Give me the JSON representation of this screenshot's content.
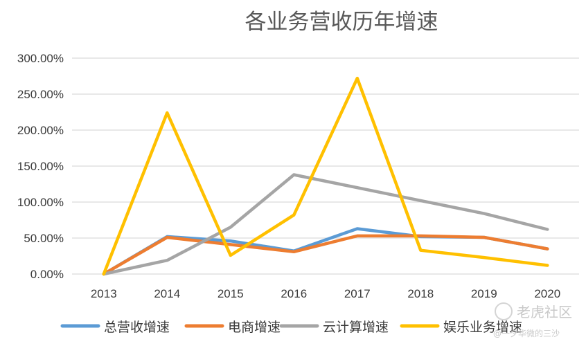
{
  "chart_data": {
    "type": "line",
    "title": "各业务营收历年增速",
    "xlabel": "",
    "ylabel": "",
    "categories": [
      "2013",
      "2014",
      "2015",
      "2016",
      "2017",
      "2018",
      "2019",
      "2020"
    ],
    "y_ticks": [
      "0.00%",
      "50.00%",
      "100.00%",
      "150.00%",
      "200.00%",
      "250.00%",
      "300.00%"
    ],
    "ylim": [
      0,
      3.0
    ],
    "grid": true,
    "legend_position": "bottom",
    "series": [
      {
        "name": "总营收增速",
        "color": "#5B9BD5",
        "values": [
          0,
          0.52,
          0.46,
          0.32,
          0.63,
          0.52,
          0.51,
          0.35
        ]
      },
      {
        "name": "电商增速",
        "color": "#ED7D31",
        "values": [
          0,
          0.51,
          0.41,
          0.31,
          0.53,
          0.53,
          0.51,
          0.35
        ]
      },
      {
        "name": "云计算增速",
        "color": "#A5A5A5",
        "values": [
          0,
          0.19,
          0.65,
          1.38,
          1.2,
          1.02,
          0.84,
          0.62
        ]
      },
      {
        "name": "娱乐业务增速",
        "color": "#FFC000",
        "values": [
          0,
          2.24,
          0.26,
          0.82,
          2.72,
          0.33,
          0.23,
          0.12
        ]
      }
    ]
  },
  "watermark": {
    "brand": "老虎社区",
    "handle": "@一夕华微的三沙"
  }
}
